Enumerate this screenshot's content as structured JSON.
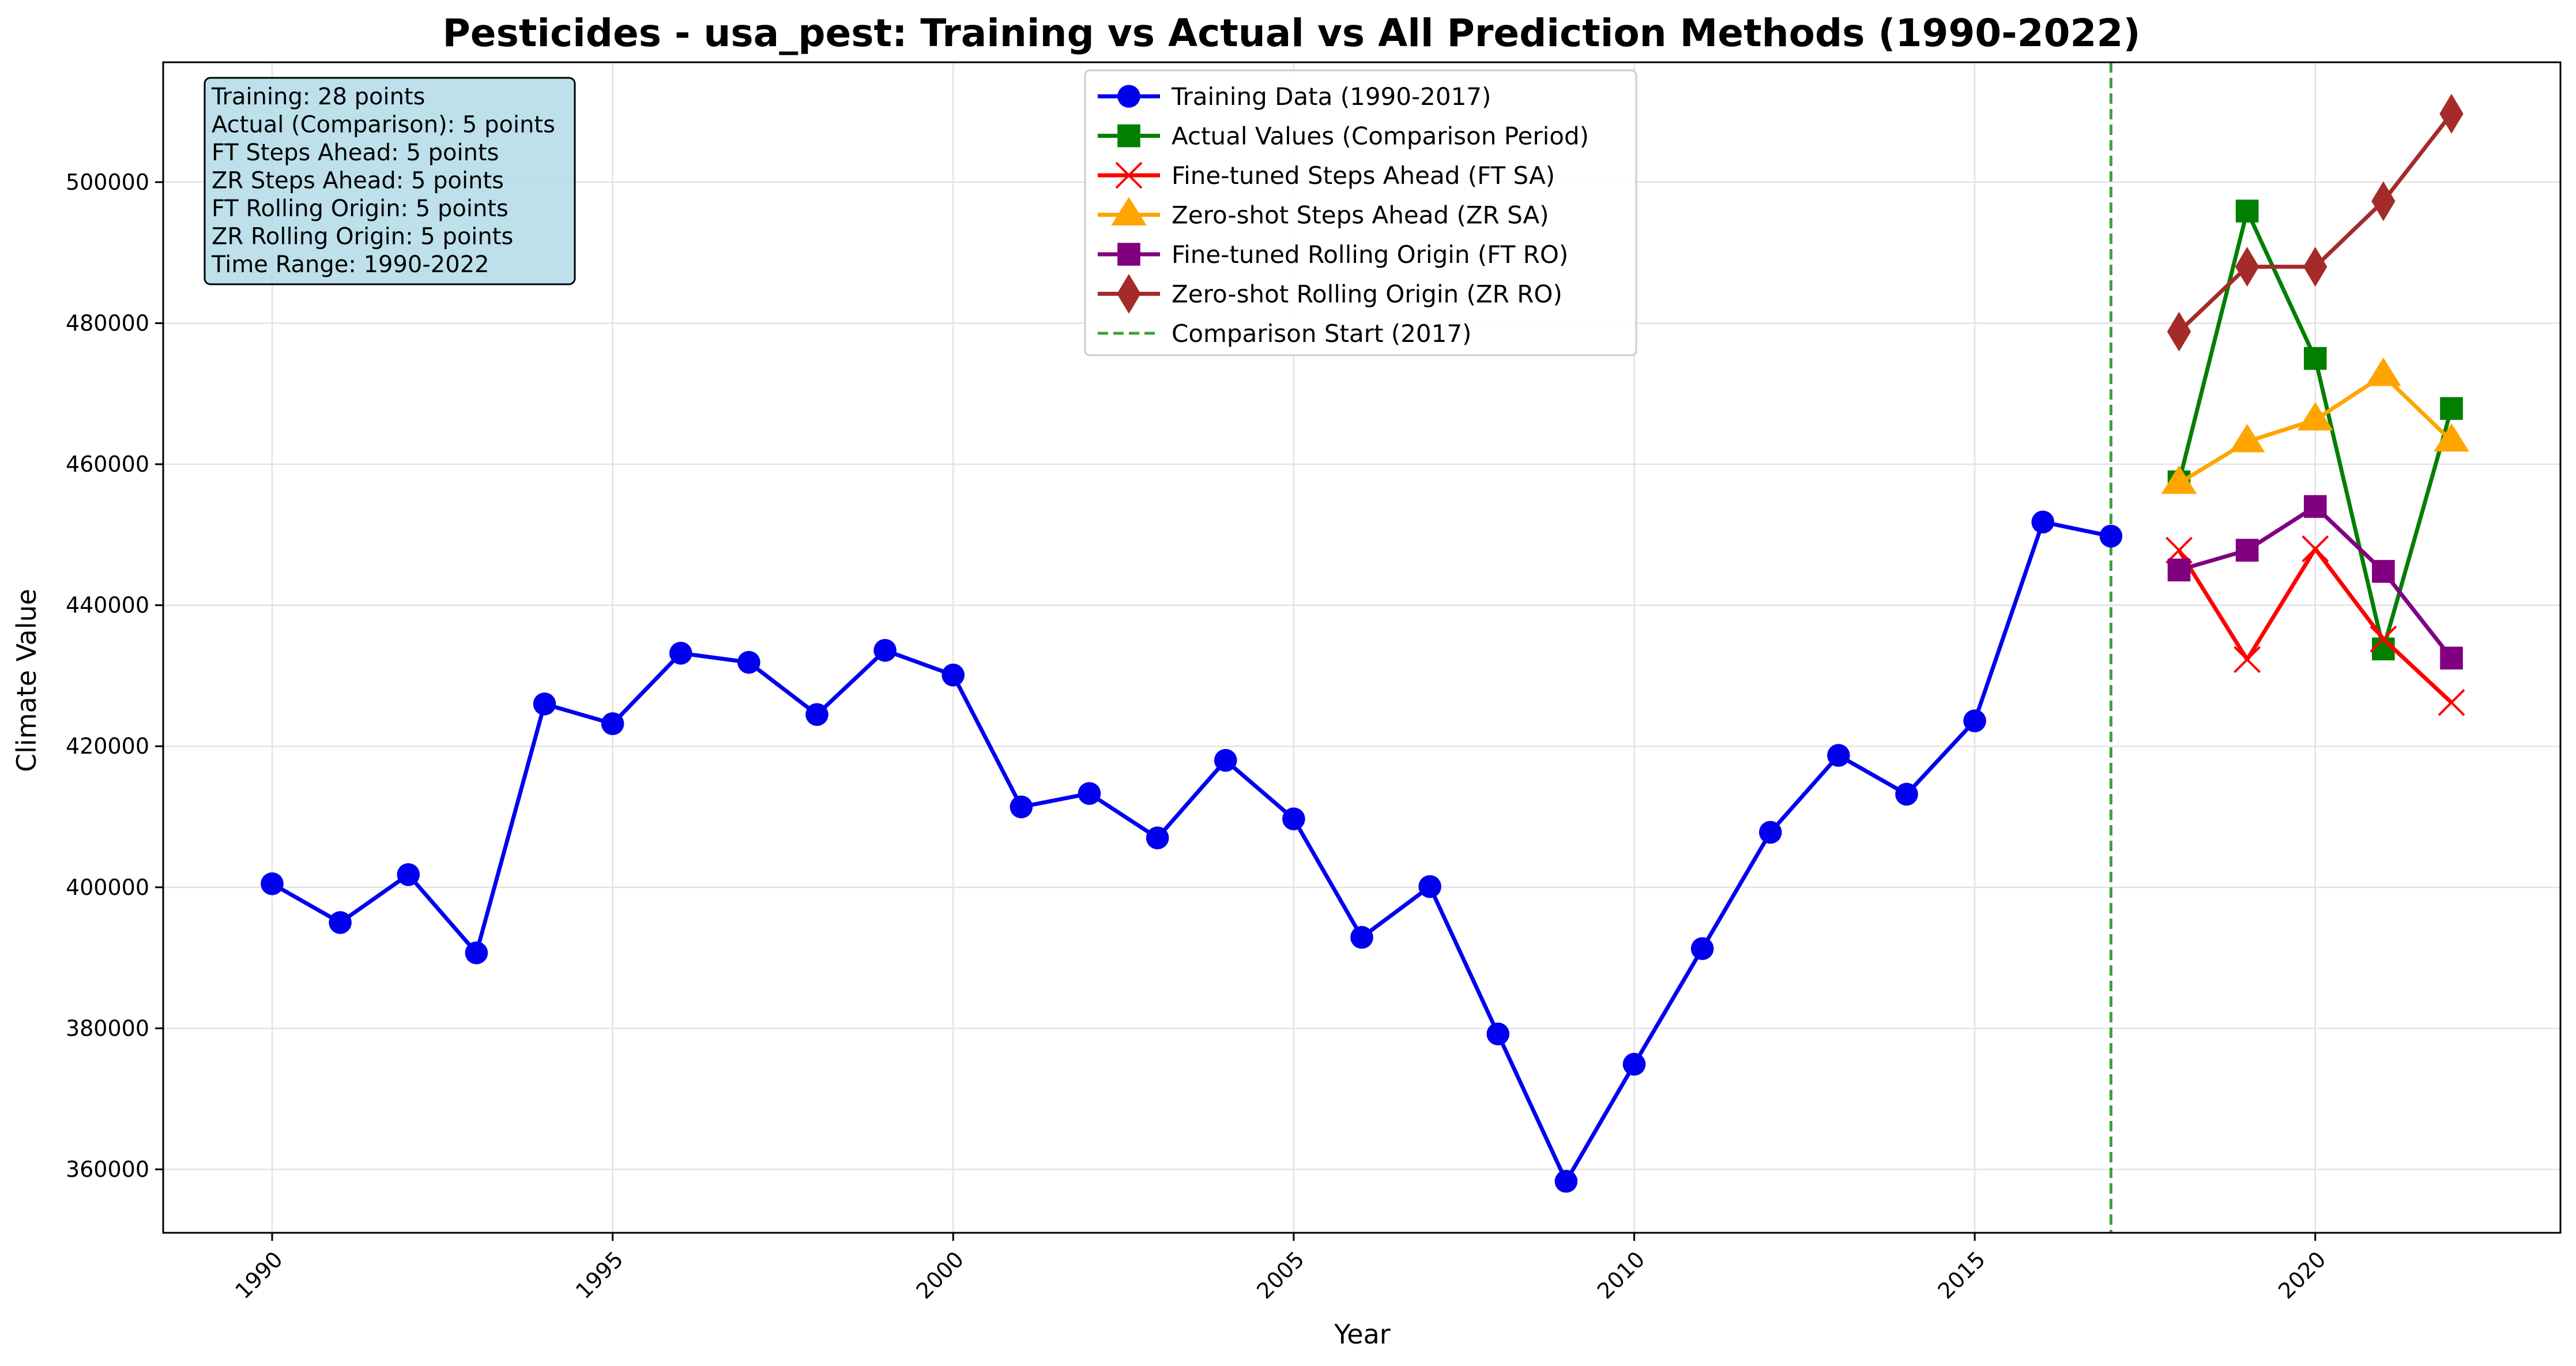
{
  "chart_data": {
    "type": "line",
    "title": "Pesticides - usa_pest: Training vs Actual vs All Prediction Methods (1990-2022)",
    "xlabel": "Year",
    "ylabel": "Climate Value",
    "xlim": [
      1988.4,
      2023.6
    ],
    "ylim": [
      351000,
      517000
    ],
    "x_ticks": [
      1990,
      1995,
      2000,
      2005,
      2010,
      2015,
      2020
    ],
    "x_tick_labels": [
      "1990",
      "1995",
      "2000",
      "2005",
      "2010",
      "2015",
      "2020"
    ],
    "y_ticks": [
      360000,
      380000,
      400000,
      420000,
      440000,
      460000,
      480000,
      500000
    ],
    "y_tick_labels": [
      "360000",
      "380000",
      "400000",
      "420000",
      "440000",
      "460000",
      "480000",
      "500000"
    ],
    "grid": true,
    "legend_position": "top-center",
    "series": [
      {
        "name": "Training Data (1990-2017)",
        "color": "#0000ee",
        "marker": "circle",
        "x": [
          1990,
          1991,
          1992,
          1993,
          1994,
          1995,
          1996,
          1997,
          1998,
          1999,
          2000,
          2001,
          2002,
          2003,
          2004,
          2005,
          2006,
          2007,
          2008,
          2009,
          2010,
          2011,
          2012,
          2013,
          2014,
          2015,
          2016,
          2017
        ],
        "y": [
          400500,
          395000,
          401800,
          390700,
          426000,
          423200,
          433200,
          431900,
          424500,
          433600,
          430100,
          411400,
          413300,
          407000,
          418000,
          409700,
          392900,
          400100,
          379200,
          358300,
          374900,
          391300,
          407800,
          418700,
          413200,
          423600,
          451800,
          449800
        ]
      },
      {
        "name": "Actual Values (Comparison Period)",
        "color": "#007f00",
        "marker": "square",
        "x": [
          2018,
          2019,
          2020,
          2021,
          2022
        ],
        "y": [
          457500,
          495900,
          475000,
          433800,
          467900
        ]
      },
      {
        "name": "Fine-tuned Steps Ahead (FT SA)",
        "color": "#ff0000",
        "marker": "x",
        "x": [
          2018,
          2019,
          2020,
          2021,
          2022
        ],
        "y": [
          447800,
          432300,
          448000,
          435200,
          426200
        ]
      },
      {
        "name": "Zero-shot Steps Ahead (ZR SA)",
        "color": "#ffa500",
        "marker": "triangle",
        "x": [
          2018,
          2019,
          2020,
          2021,
          2022
        ],
        "y": [
          457300,
          463200,
          466300,
          472600,
          463300
        ]
      },
      {
        "name": "Fine-tuned Rolling Origin (FT RO)",
        "color": "#800080",
        "marker": "square",
        "x": [
          2018,
          2019,
          2020,
          2021,
          2022
        ],
        "y": [
          445000,
          447800,
          454000,
          444800,
          432500
        ]
      },
      {
        "name": "Zero-shot Rolling Origin (ZR RO)",
        "color": "#a52a2a",
        "marker": "diamond",
        "x": [
          2018,
          2019,
          2020,
          2021,
          2022
        ],
        "y": [
          478800,
          488000,
          488000,
          497300,
          509700
        ]
      }
    ],
    "vline": {
      "name": "Comparison Start (2017)",
      "x": 2017,
      "color": "#3ca03c"
    },
    "info_box": [
      "Training: 28 points",
      "Actual (Comparison): 5 points",
      "FT Steps Ahead: 5 points",
      "ZR Steps Ahead: 5 points",
      "FT Rolling Origin: 5 points",
      "ZR Rolling Origin: 5 points",
      "Time Range: 1990-2022"
    ]
  }
}
